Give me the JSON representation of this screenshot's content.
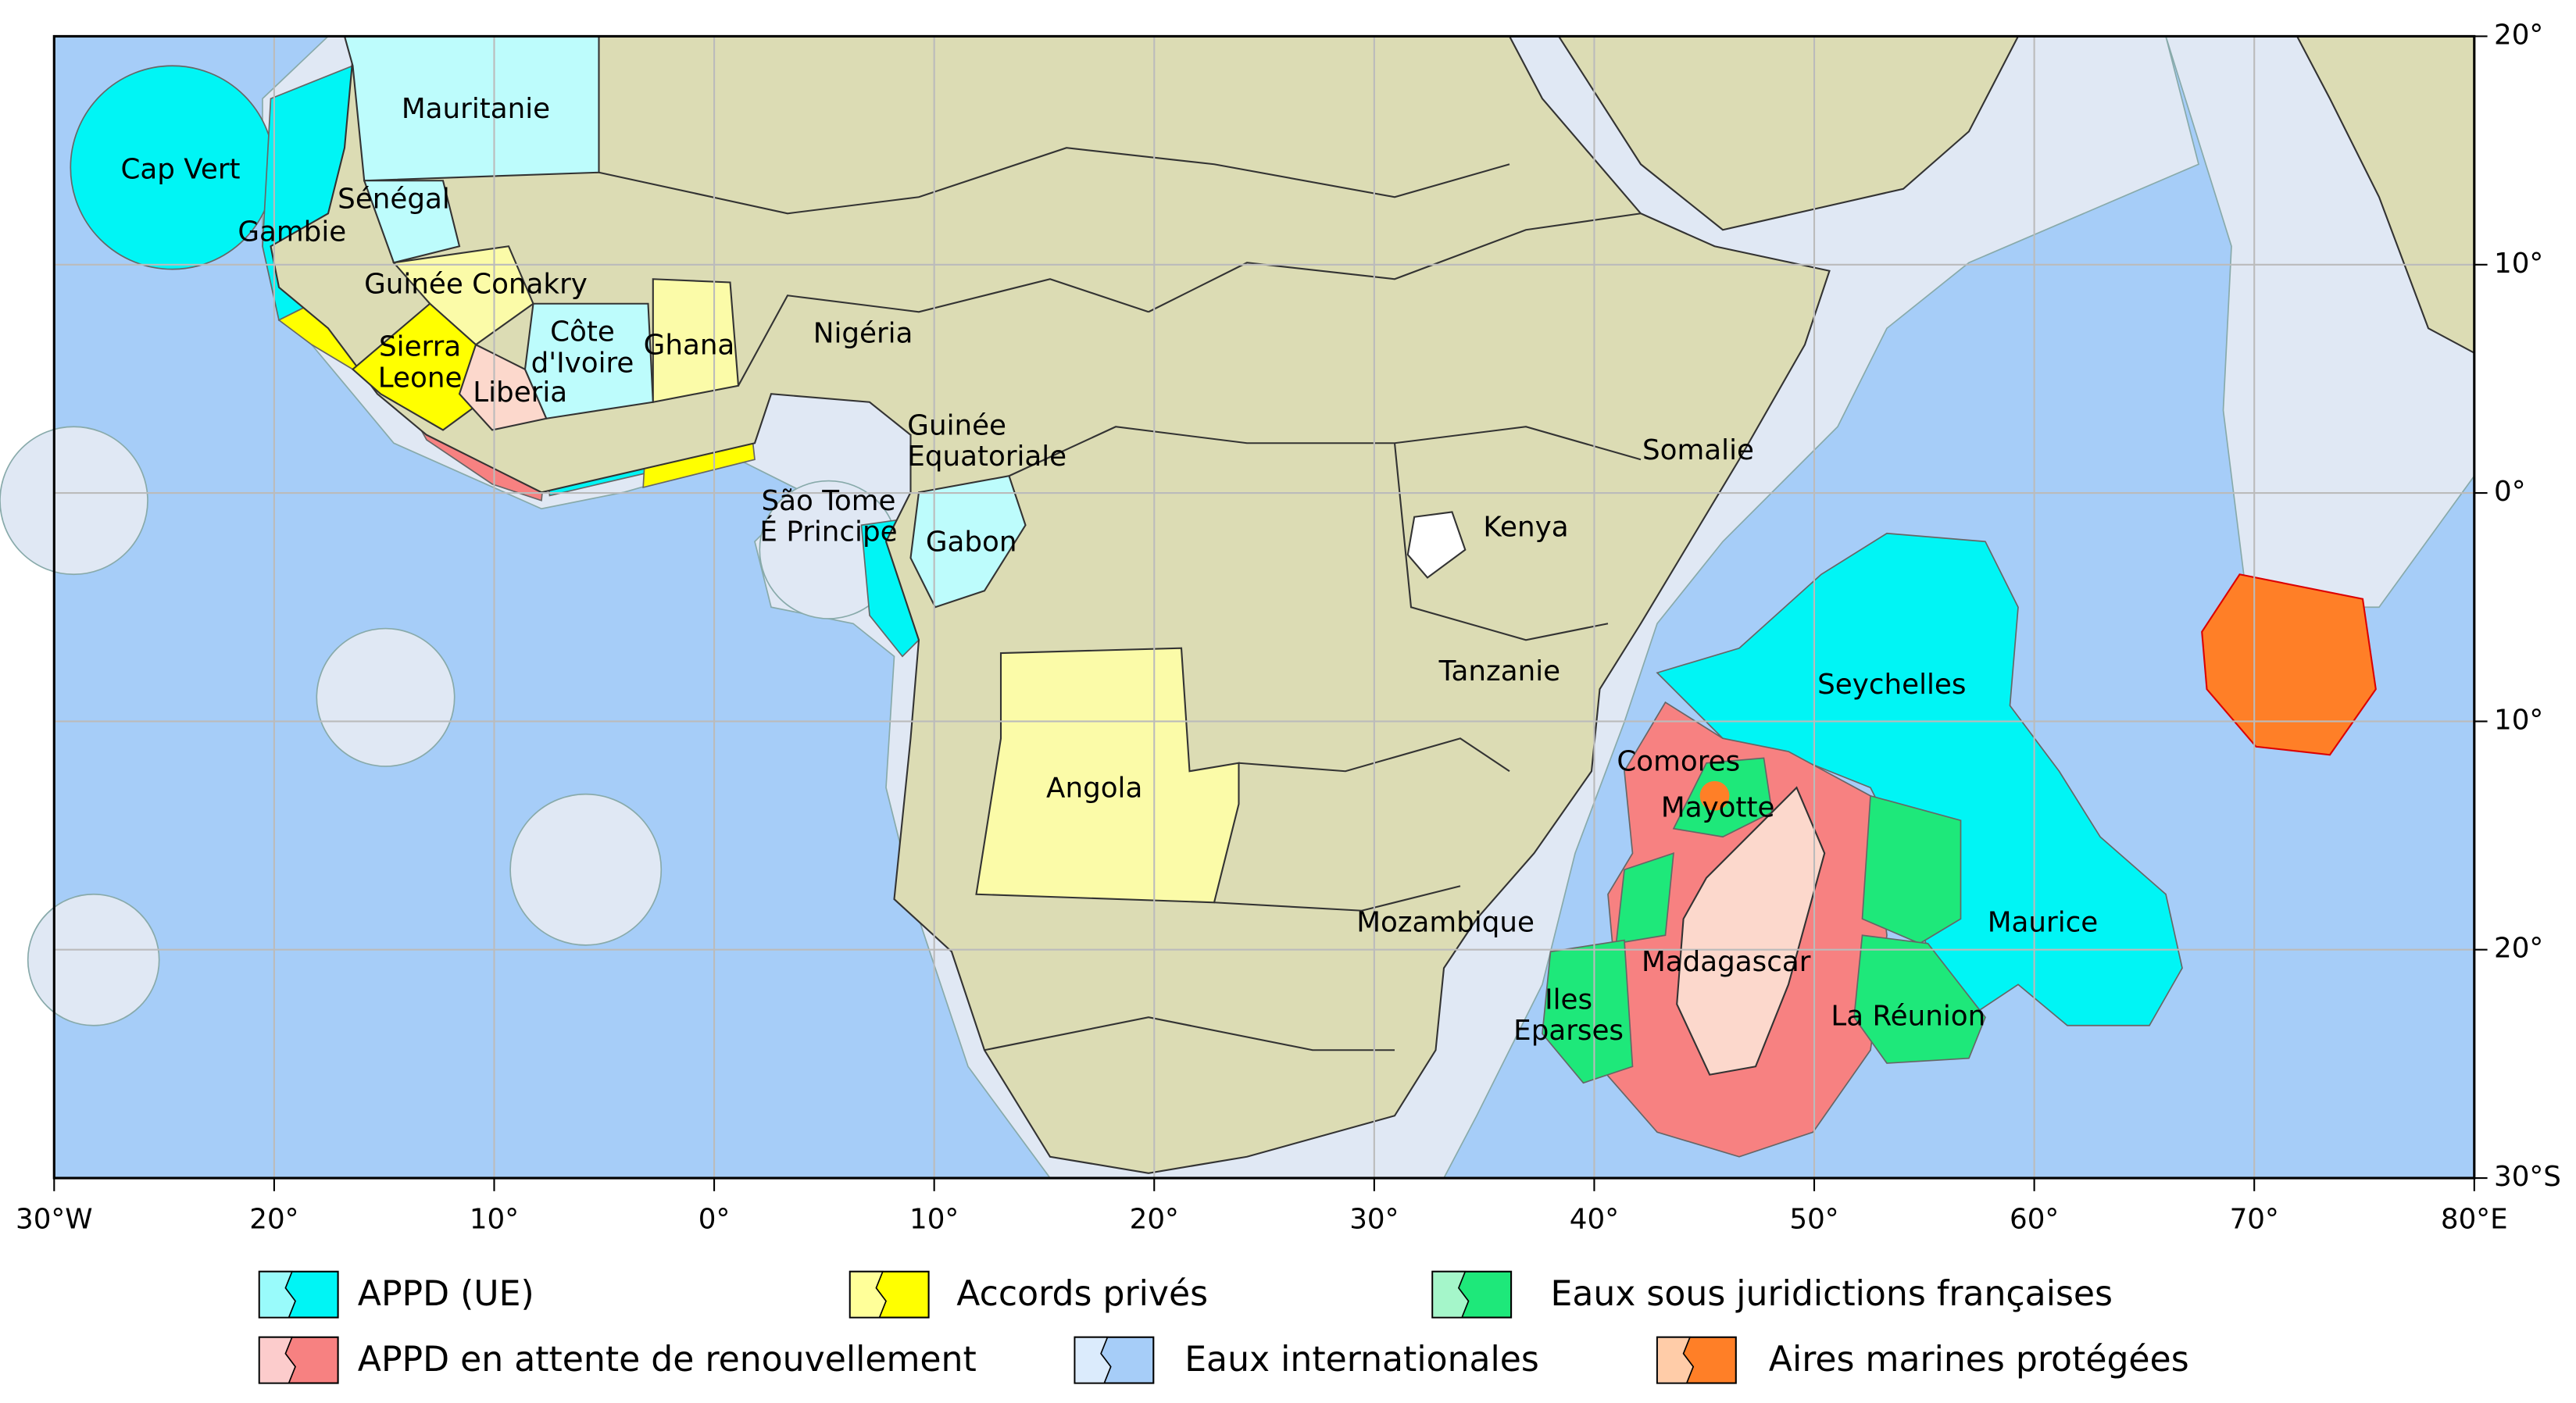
{
  "map": {
    "xlim": [
      -30,
      80
    ],
    "ylim": [
      -30,
      20
    ],
    "xticks": [
      {
        "value": -30,
        "label": "30°W"
      },
      {
        "value": -20,
        "label": "20°"
      },
      {
        "value": -10,
        "label": "10°"
      },
      {
        "value": 0,
        "label": "0°"
      },
      {
        "value": 10,
        "label": "10°"
      },
      {
        "value": 20,
        "label": "20°"
      },
      {
        "value": 30,
        "label": "30°"
      },
      {
        "value": 40,
        "label": "40°"
      },
      {
        "value": 50,
        "label": "50°"
      },
      {
        "value": 60,
        "label": "60°"
      },
      {
        "value": 70,
        "label": "70°"
      },
      {
        "value": 80,
        "label": "80°E"
      }
    ],
    "yticks": [
      {
        "value": 20,
        "label": "20°"
      },
      {
        "value": 10,
        "label": "10°"
      },
      {
        "value": 0,
        "label": "0°"
      },
      {
        "value": -10,
        "label": "10°"
      },
      {
        "value": -20,
        "label": "20°"
      },
      {
        "value": -30,
        "label": "30°S"
      }
    ],
    "labels": [
      "Mauritanie",
      "Cap Vert",
      "Sénégal",
      "Gambie",
      "Guinée Conakry",
      [
        "Sierra",
        "Leone"
      ],
      "Liberia",
      [
        "Côte",
        "d'Ivoire"
      ],
      "Ghana",
      "Nigéria",
      [
        "Guinée",
        "Equatoriale"
      ],
      [
        "São Tome",
        "É Principe"
      ],
      "Gabon",
      "Angola",
      "Kenya",
      "Somalie",
      "Tanzanie",
      "Seychelles",
      "Comores",
      "Mayotte",
      "Mozambique",
      "Madagascar",
      [
        "Iles",
        "Eparses"
      ],
      "La Réunion",
      "Maurice"
    ]
  },
  "legend": [
    {
      "label": "APPD (UE)",
      "color": "#00f5f5"
    },
    {
      "label": "Accords privés",
      "color": "#ffff00"
    },
    {
      "label": "Eaux sous juridictions françaises",
      "color": "#1ee87a"
    },
    {
      "label": "APPD en attente de renouvellement",
      "color": "#f78181"
    },
    {
      "label": "Eaux internationales",
      "color": "#a6cdf8"
    },
    {
      "label": "Aires marines protégées",
      "color": "#ff7f27"
    }
  ]
}
